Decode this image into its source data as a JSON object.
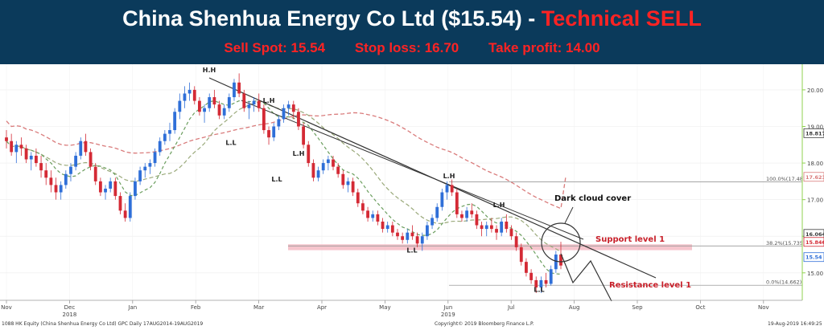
{
  "header": {
    "title_main": "China Shenhua Energy Co Ltd ($15.54) - ",
    "title_signal": "Technical SELL",
    "sell_spot": "Sell Spot: 15.54",
    "stop_loss": "Stop loss: 16.70",
    "take_profit": "Take profit: 14.00"
  },
  "footer": {
    "left": "1088 HK Equity (China Shenhua Energy Co Ltd) GPC  Daily 17AUG2014-19AUG2019",
    "center": "Copyright© 2019 Bloomberg Finance L.P.",
    "right": "19-Aug-2019 16:49:25"
  },
  "colors": {
    "banner_bg": "#0b3a5b",
    "signal_red": "#ff2323",
    "candle_up": "#2f6fd8",
    "candle_down": "#d42a35",
    "ma_short": "#6b9e5e",
    "ma_mid": "#9aa97a",
    "ma_long": "#d97b7b",
    "support_band": "#f4b7c1",
    "trendline": "#333333"
  },
  "chart_data": {
    "type": "candlestick",
    "ylim": [
      14.25,
      20.7
    ],
    "y_ticks": [
      "20.00",
      "19.00",
      "18.00",
      "17.00",
      "16.00",
      "15.00"
    ],
    "x_months": [
      {
        "label": "Nov",
        "year": ""
      },
      {
        "label": "Dec",
        "year": "2018"
      },
      {
        "label": "Jan",
        "year": ""
      },
      {
        "label": "Feb",
        "year": ""
      },
      {
        "label": "Mar",
        "year": ""
      },
      {
        "label": "Apr",
        "year": ""
      },
      {
        "label": "May",
        "year": ""
      },
      {
        "label": "Jun",
        "year": "2019"
      },
      {
        "label": "Jul",
        "year": ""
      },
      {
        "label": "Aug",
        "year": ""
      },
      {
        "label": "Sep",
        "year": ""
      },
      {
        "label": "Oct",
        "year": ""
      },
      {
        "label": "Nov",
        "year": ""
      }
    ],
    "price_tags": [
      {
        "label": "18.817",
        "value": 18.817,
        "color": "#3a3a3a"
      },
      {
        "label": "17.623",
        "value": 17.623,
        "color": "#d97b7b"
      },
      {
        "label": "16.064",
        "value": 16.064,
        "color": "#3a3a3a"
      },
      {
        "label": "15.846",
        "value": 15.846,
        "color": "#d42a35"
      },
      {
        "label": "15.54",
        "value": 15.54,
        "color": "#2f6fd8"
      }
    ],
    "fib_levels": [
      {
        "label": "100.0%(17.487)",
        "value": 17.487
      },
      {
        "label": "38.2%(15.735)",
        "value": 15.735
      },
      {
        "label": "0.0%(14.662)",
        "value": 14.662
      }
    ],
    "support_band": [
      15.62,
      15.78
    ],
    "annotations": {
      "dark_cloud": "Dark cloud cover",
      "support": "Support level 1",
      "resistance": "Resistance level 1"
    },
    "pivots": [
      {
        "label": "H.H",
        "x": 260,
        "value": 20.48
      },
      {
        "label": "L.H",
        "x": 334,
        "value": 19.65
      },
      {
        "label": "L.L",
        "x": 287,
        "value": 18.5
      },
      {
        "label": "L.H",
        "x": 371,
        "value": 18.2
      },
      {
        "label": "L.L",
        "x": 344,
        "value": 17.5
      },
      {
        "label": "L.H",
        "x": 558,
        "value": 17.58
      },
      {
        "label": "L.H",
        "x": 620,
        "value": 16.8
      },
      {
        "label": "L.L",
        "x": 512,
        "value": 15.55
      },
      {
        "label": "L.L",
        "x": 670,
        "value": 14.48
      }
    ],
    "candles": [
      [
        18.7,
        18.9,
        18.4,
        18.6
      ],
      [
        18.6,
        18.8,
        18.2,
        18.3
      ],
      [
        18.3,
        18.6,
        18.0,
        18.5
      ],
      [
        18.5,
        18.7,
        18.2,
        18.4
      ],
      [
        18.4,
        18.5,
        18.0,
        18.1
      ],
      [
        18.1,
        18.3,
        17.8,
        18.2
      ],
      [
        18.2,
        18.4,
        17.9,
        18.0
      ],
      [
        18.0,
        18.2,
        17.6,
        17.8
      ],
      [
        17.8,
        18.0,
        17.4,
        17.6
      ],
      [
        17.6,
        17.8,
        17.2,
        17.4
      ],
      [
        17.4,
        17.6,
        17.0,
        17.2
      ],
      [
        17.2,
        17.5,
        17.0,
        17.4
      ],
      [
        17.4,
        17.8,
        17.3,
        17.7
      ],
      [
        17.7,
        18.0,
        17.5,
        17.9
      ],
      [
        17.9,
        18.3,
        17.8,
        18.2
      ],
      [
        18.2,
        18.7,
        18.1,
        18.6
      ],
      [
        18.6,
        18.8,
        18.2,
        18.3
      ],
      [
        18.3,
        18.4,
        17.8,
        17.9
      ],
      [
        17.9,
        18.0,
        17.4,
        17.5
      ],
      [
        17.5,
        17.6,
        17.1,
        17.2
      ],
      [
        17.2,
        17.4,
        17.0,
        17.3
      ],
      [
        17.3,
        17.6,
        17.2,
        17.5
      ],
      [
        17.5,
        17.6,
        17.0,
        17.1
      ],
      [
        17.1,
        17.2,
        16.6,
        16.7
      ],
      [
        16.7,
        16.9,
        16.4,
        16.5
      ],
      [
        16.5,
        17.2,
        16.4,
        17.1
      ],
      [
        17.1,
        17.6,
        17.0,
        17.5
      ],
      [
        17.5,
        17.9,
        17.4,
        17.8
      ],
      [
        17.8,
        18.0,
        17.6,
        17.9
      ],
      [
        17.9,
        18.1,
        17.7,
        18.0
      ],
      [
        18.0,
        18.4,
        17.9,
        18.3
      ],
      [
        18.3,
        18.7,
        18.2,
        18.6
      ],
      [
        18.6,
        18.9,
        18.5,
        18.8
      ],
      [
        18.8,
        19.1,
        18.6,
        18.9
      ],
      [
        18.9,
        19.5,
        18.8,
        19.4
      ],
      [
        19.4,
        19.9,
        19.2,
        19.7
      ],
      [
        19.7,
        20.1,
        19.5,
        19.9
      ],
      [
        19.9,
        20.2,
        19.7,
        20.0
      ],
      [
        20.0,
        20.1,
        19.6,
        19.7
      ],
      [
        19.7,
        19.8,
        19.3,
        19.4
      ],
      [
        19.4,
        19.6,
        19.1,
        19.5
      ],
      [
        19.5,
        19.9,
        19.4,
        19.8
      ],
      [
        19.8,
        20.0,
        19.5,
        19.6
      ],
      [
        19.6,
        19.7,
        19.2,
        19.3
      ],
      [
        19.3,
        19.6,
        19.2,
        19.5
      ],
      [
        19.5,
        19.9,
        19.4,
        19.8
      ],
      [
        19.8,
        20.3,
        19.7,
        20.2
      ],
      [
        20.2,
        20.45,
        19.8,
        19.9
      ],
      [
        19.9,
        20.0,
        19.4,
        19.5
      ],
      [
        19.5,
        19.7,
        19.2,
        19.6
      ],
      [
        19.6,
        19.8,
        19.4,
        19.7
      ],
      [
        19.7,
        19.9,
        19.4,
        19.5
      ],
      [
        19.5,
        19.6,
        18.8,
        18.9
      ],
      [
        18.9,
        19.0,
        18.5,
        18.7
      ],
      [
        18.7,
        19.1,
        18.6,
        19.0
      ],
      [
        19.0,
        19.3,
        18.9,
        19.2
      ],
      [
        19.2,
        19.6,
        19.1,
        19.5
      ],
      [
        19.5,
        19.7,
        19.3,
        19.6
      ],
      [
        19.6,
        19.7,
        19.2,
        19.4
      ],
      [
        19.4,
        19.5,
        18.9,
        19.0
      ],
      [
        19.0,
        19.1,
        18.4,
        18.5
      ],
      [
        18.5,
        18.6,
        17.9,
        18.0
      ],
      [
        18.0,
        18.1,
        17.5,
        17.6
      ],
      [
        17.6,
        17.9,
        17.5,
        17.8
      ],
      [
        17.8,
        18.1,
        17.7,
        18.0
      ],
      [
        18.0,
        18.2,
        17.8,
        18.1
      ],
      [
        18.1,
        18.2,
        17.8,
        17.9
      ],
      [
        17.9,
        18.0,
        17.6,
        17.7
      ],
      [
        17.7,
        17.8,
        17.3,
        17.4
      ],
      [
        17.4,
        17.6,
        17.2,
        17.5
      ],
      [
        17.5,
        17.6,
        17.1,
        17.2
      ],
      [
        17.2,
        17.3,
        16.8,
        16.9
      ],
      [
        16.9,
        17.0,
        16.6,
        16.7
      ],
      [
        16.7,
        16.8,
        16.4,
        16.5
      ],
      [
        16.5,
        16.7,
        16.4,
        16.6
      ],
      [
        16.6,
        16.7,
        16.3,
        16.4
      ],
      [
        16.4,
        16.5,
        16.1,
        16.2
      ],
      [
        16.2,
        16.4,
        16.1,
        16.3
      ],
      [
        16.3,
        16.4,
        16.0,
        16.1
      ],
      [
        16.1,
        16.2,
        15.9,
        16.0
      ],
      [
        16.0,
        16.1,
        15.8,
        15.9
      ],
      [
        15.9,
        16.2,
        15.8,
        16.1
      ],
      [
        16.1,
        16.3,
        15.9,
        16.0
      ],
      [
        16.0,
        16.1,
        15.7,
        15.8
      ],
      [
        15.8,
        16.1,
        15.6,
        16.0
      ],
      [
        16.0,
        16.4,
        15.9,
        16.3
      ],
      [
        16.3,
        16.6,
        16.2,
        16.5
      ],
      [
        16.5,
        16.9,
        16.4,
        16.8
      ],
      [
        16.8,
        17.3,
        16.7,
        17.2
      ],
      [
        17.2,
        17.5,
        17.0,
        17.4
      ],
      [
        17.4,
        17.55,
        17.1,
        17.2
      ],
      [
        17.2,
        17.3,
        16.5,
        16.6
      ],
      [
        16.6,
        16.7,
        16.4,
        16.5
      ],
      [
        16.5,
        16.8,
        16.4,
        16.7
      ],
      [
        16.7,
        16.9,
        16.5,
        16.6
      ],
      [
        16.6,
        16.7,
        16.2,
        16.3
      ],
      [
        16.3,
        16.4,
        16.0,
        16.2
      ],
      [
        16.2,
        16.4,
        16.0,
        16.3
      ],
      [
        16.3,
        16.5,
        16.1,
        16.2
      ],
      [
        16.2,
        16.3,
        15.9,
        16.1
      ],
      [
        16.1,
        16.5,
        16.0,
        16.4
      ],
      [
        16.4,
        16.6,
        16.1,
        16.2
      ],
      [
        16.2,
        16.3,
        15.9,
        16.0
      ],
      [
        16.0,
        16.1,
        15.6,
        15.7
      ],
      [
        15.7,
        15.8,
        15.2,
        15.3
      ],
      [
        15.3,
        15.4,
        14.9,
        15.0
      ],
      [
        15.0,
        15.1,
        14.7,
        14.8
      ],
      [
        14.8,
        14.9,
        14.45,
        14.6
      ],
      [
        14.6,
        14.9,
        14.45,
        14.8
      ],
      [
        14.8,
        15.0,
        14.6,
        14.7
      ],
      [
        14.7,
        15.2,
        14.65,
        15.1
      ],
      [
        15.1,
        15.6,
        15.0,
        15.5
      ],
      [
        15.5,
        15.85,
        15.1,
        15.2
      ]
    ]
  }
}
